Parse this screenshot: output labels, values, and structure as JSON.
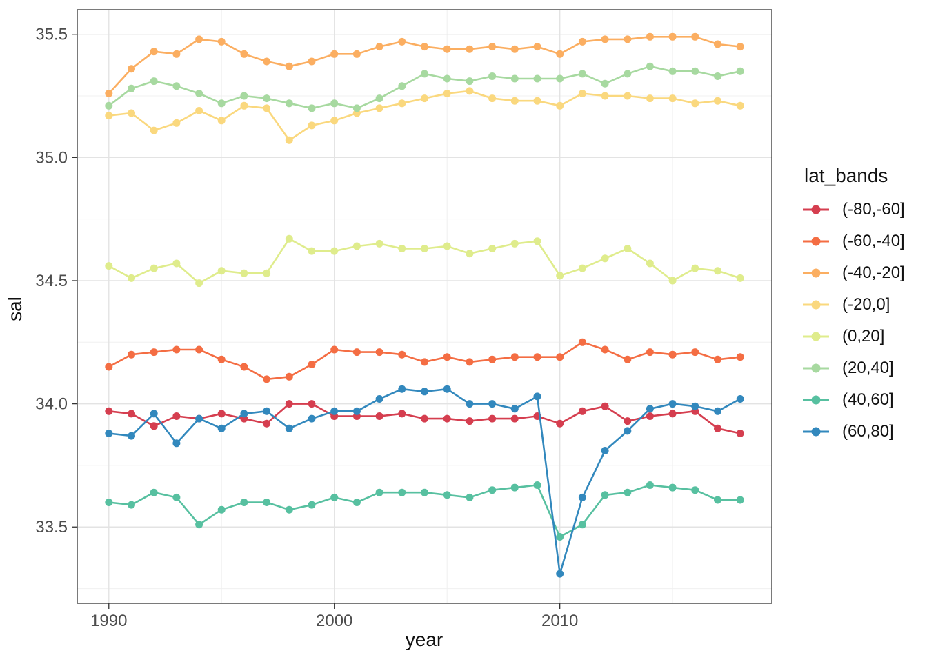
{
  "chart_data": {
    "type": "line",
    "title": "",
    "xlabel": "year",
    "ylabel": "sal",
    "legend_title": "lat_bands",
    "legend_position": "right",
    "grid": true,
    "panel": {
      "background": "#ffffff",
      "border_color": "#333333",
      "grid_major_color": "#e3e3e3",
      "grid_minor_color": "#f0f0f0"
    },
    "axis_text_color": "#4d4d4d",
    "xlim": [
      1988.6,
      2019.4
    ],
    "ylim": [
      33.19,
      35.6
    ],
    "x_ticks": [
      1990,
      2000,
      2010
    ],
    "x_tick_labels": [
      "1990",
      "2000",
      "2010"
    ],
    "x_minor": [
      1995,
      2005,
      2015
    ],
    "y_ticks": [
      33.5,
      34.0,
      34.5,
      35.0,
      35.5
    ],
    "y_tick_labels": [
      "33.5",
      "34.0",
      "34.5",
      "35.0",
      "35.5"
    ],
    "y_minor": [
      33.25,
      33.75,
      34.25,
      34.75,
      35.25
    ],
    "x": [
      1990,
      1991,
      1992,
      1993,
      1994,
      1995,
      1996,
      1997,
      1998,
      1999,
      2000,
      2001,
      2002,
      2003,
      2004,
      2005,
      2006,
      2007,
      2008,
      2009,
      2010,
      2011,
      2012,
      2013,
      2014,
      2015,
      2016,
      2017,
      2018
    ],
    "series": [
      {
        "name": "(-80,-60]",
        "color": "#D53E4F",
        "values": [
          33.97,
          33.96,
          33.91,
          33.95,
          33.94,
          33.96,
          33.94,
          33.92,
          34.0,
          34.0,
          33.95,
          33.95,
          33.95,
          33.96,
          33.94,
          33.94,
          33.93,
          33.94,
          33.94,
          33.95,
          33.92,
          33.97,
          33.99,
          33.93,
          33.95,
          33.96,
          33.97,
          33.9,
          33.88
        ]
      },
      {
        "name": "(-60,-40]",
        "color": "#F46D43",
        "values": [
          34.15,
          34.2,
          34.21,
          34.22,
          34.22,
          34.18,
          34.15,
          34.1,
          34.11,
          34.16,
          34.22,
          34.21,
          34.21,
          34.2,
          34.17,
          34.19,
          34.17,
          34.18,
          34.19,
          34.19,
          34.19,
          34.25,
          34.22,
          34.18,
          34.21,
          34.2,
          34.21,
          34.18,
          34.19
        ]
      },
      {
        "name": "(-40,-20]",
        "color": "#FBAE61",
        "values": [
          35.26,
          35.36,
          35.43,
          35.42,
          35.48,
          35.47,
          35.42,
          35.39,
          35.37,
          35.39,
          35.42,
          35.42,
          35.45,
          35.47,
          35.45,
          35.44,
          35.44,
          35.45,
          35.44,
          35.45,
          35.42,
          35.47,
          35.48,
          35.48,
          35.49,
          35.49,
          35.49,
          35.46,
          35.45
        ]
      },
      {
        "name": "(-20,0]",
        "color": "#FAD87E",
        "values": [
          35.17,
          35.18,
          35.11,
          35.14,
          35.19,
          35.15,
          35.21,
          35.2,
          35.07,
          35.13,
          35.15,
          35.18,
          35.2,
          35.22,
          35.24,
          35.26,
          35.27,
          35.24,
          35.23,
          35.23,
          35.21,
          35.26,
          35.25,
          35.25,
          35.24,
          35.24,
          35.22,
          35.23,
          35.21
        ]
      },
      {
        "name": "(0,20]",
        "color": "#DFEC8C",
        "values": [
          34.56,
          34.51,
          34.55,
          34.57,
          34.49,
          34.54,
          34.53,
          34.53,
          34.67,
          34.62,
          34.62,
          34.64,
          34.65,
          34.63,
          34.63,
          34.64,
          34.61,
          34.63,
          34.65,
          34.66,
          34.52,
          34.55,
          34.59,
          34.63,
          34.57,
          34.5,
          34.55,
          34.54,
          34.51
        ]
      },
      {
        "name": "(20,40]",
        "color": "#A7D9A0",
        "values": [
          35.21,
          35.28,
          35.31,
          35.29,
          35.26,
          35.22,
          35.25,
          35.24,
          35.22,
          35.2,
          35.22,
          35.2,
          35.24,
          35.29,
          35.34,
          35.32,
          35.31,
          35.33,
          35.32,
          35.32,
          35.32,
          35.34,
          35.3,
          35.34,
          35.37,
          35.35,
          35.35,
          35.33,
          35.35
        ]
      },
      {
        "name": "(40,60]",
        "color": "#57C0A0",
        "values": [
          33.6,
          33.59,
          33.64,
          33.62,
          33.51,
          33.57,
          33.6,
          33.6,
          33.57,
          33.59,
          33.62,
          33.6,
          33.64,
          33.64,
          33.64,
          33.63,
          33.62,
          33.65,
          33.66,
          33.67,
          33.46,
          33.51,
          33.63,
          33.64,
          33.67,
          33.66,
          33.65,
          33.61,
          33.61
        ]
      },
      {
        "name": "(60,80]",
        "color": "#3288BD",
        "values": [
          33.88,
          33.87,
          33.96,
          33.84,
          33.94,
          33.9,
          33.96,
          33.97,
          33.9,
          33.94,
          33.97,
          33.97,
          34.02,
          34.06,
          34.05,
          34.06,
          34.0,
          34.0,
          33.98,
          34.03,
          33.31,
          33.62,
          33.81,
          33.89,
          33.98,
          34.0,
          33.99,
          33.97,
          34.02
        ]
      }
    ]
  }
}
